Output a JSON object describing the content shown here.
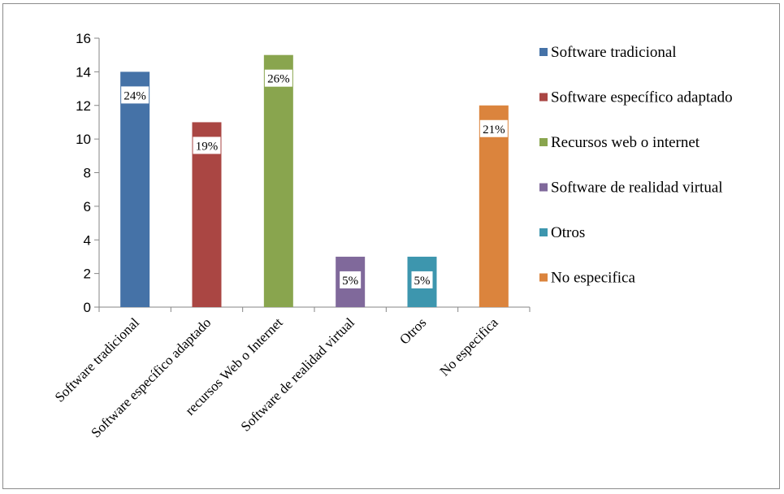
{
  "chart_data": {
    "type": "bar",
    "categories": [
      "Software tradicional",
      "Software específico adaptado",
      "recursos Web o Internet",
      "Software de realidad virtual",
      "Otros",
      "No especifica"
    ],
    "values": [
      14,
      11,
      15,
      3,
      3,
      12
    ],
    "data_labels": [
      "24%",
      "19%",
      "26%",
      "5%",
      "5%",
      "21%"
    ],
    "colors": [
      "#4572A7",
      "#AA4643",
      "#89A54E",
      "#80699B",
      "#3D96AE",
      "#DB843D"
    ],
    "legend": {
      "position": "right",
      "entries": [
        "Software tradicional",
        "Software específico adaptado",
        "Recursos web o internet",
        "Software de realidad virtual",
        "Otros",
        "No especifica"
      ]
    },
    "ylim": [
      0,
      16
    ],
    "yticks": [
      0,
      2,
      4,
      6,
      8,
      10,
      12,
      14,
      16
    ],
    "grid": false,
    "title": "",
    "xlabel": "",
    "ylabel": ""
  }
}
